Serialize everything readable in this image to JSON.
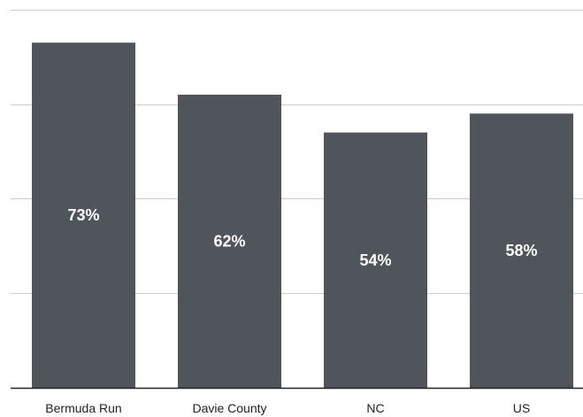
{
  "chart_data": {
    "type": "bar",
    "categories": [
      "Bermuda Run",
      "Davie County",
      "NC",
      "US"
    ],
    "values": [
      73,
      62,
      54,
      58
    ],
    "value_labels": [
      "73%",
      "62%",
      "54%",
      "58%"
    ],
    "title": "",
    "xlabel": "",
    "ylabel": "",
    "ylim": [
      0,
      80
    ],
    "grid": true,
    "y_tick_labels_shown": false,
    "legend": "none"
  },
  "colors": {
    "bar": "#50555c",
    "grid": "#cccccc",
    "axis": "#222222",
    "label_text": "#ffffff",
    "category_text": "#222222"
  }
}
